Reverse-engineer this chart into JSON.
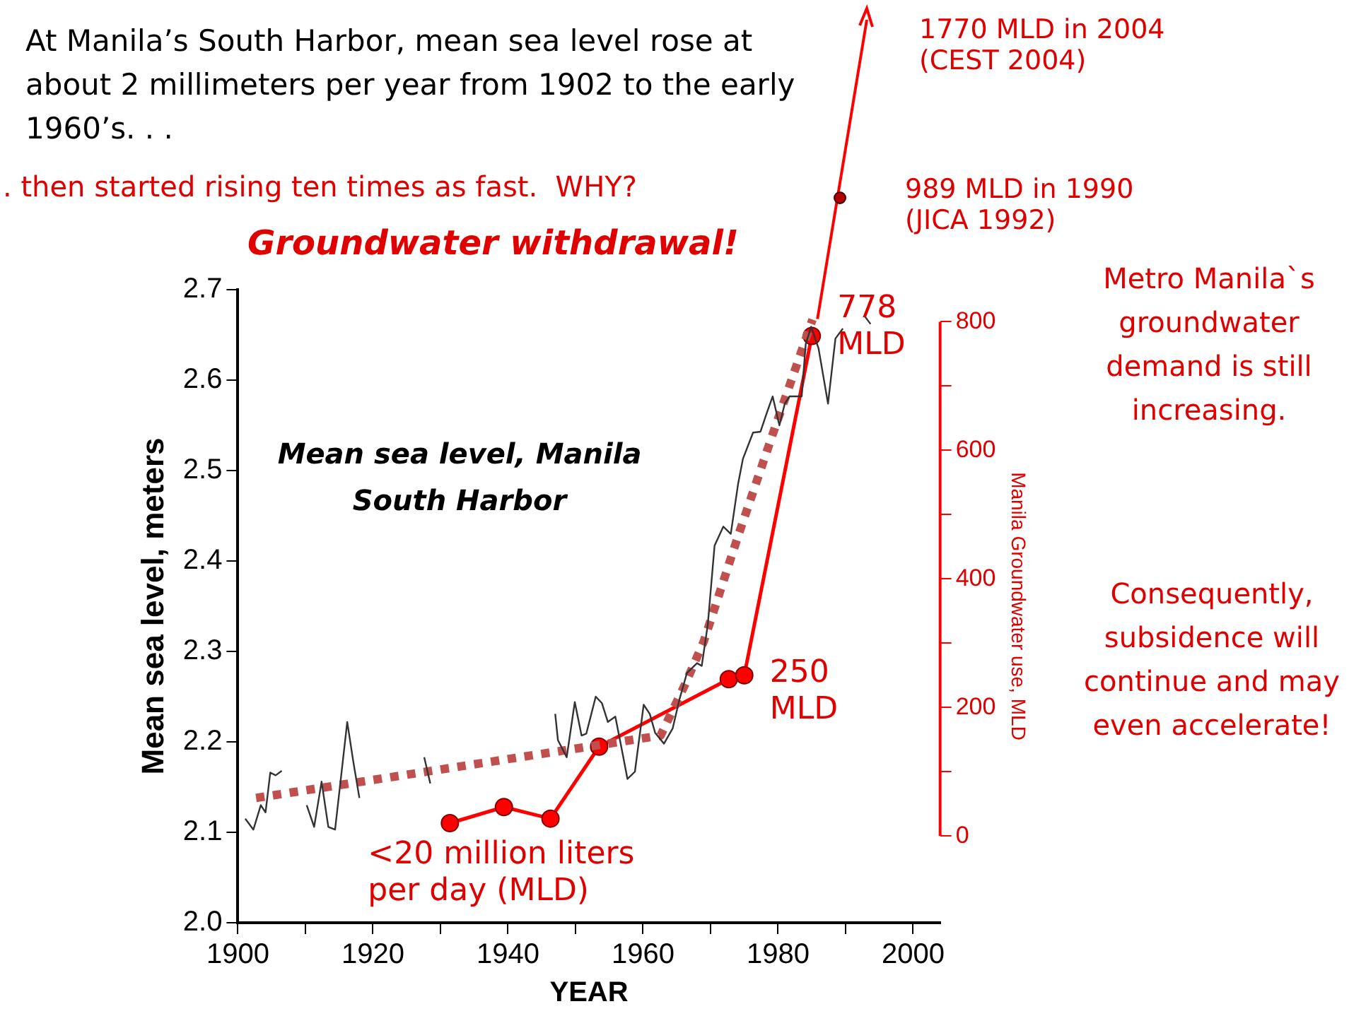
{
  "chart_data": {
    "type": "line",
    "title": "At Manila’s South Harbor, mean sea level rose at about 2 millimeters per year from 1902 to the early 1960’s. . .",
    "subtitle": ". then started rising ten times as fast.  WHY?",
    "xlabel": "YEAR",
    "ylabel": "Mean sea level, meters",
    "y2label": "Manila Groundwater use, MLD",
    "xlim": [
      1900,
      2004
    ],
    "xticks": [
      1900,
      {
        "value": 1910,
        "label": null
      },
      1920,
      {
        "value": 1930,
        "label": null
      },
      1940,
      {
        "value": 1950,
        "label": null
      },
      1960,
      {
        "value": 1970,
        "label": null
      },
      1980,
      {
        "value": 1990,
        "label": null
      },
      2000
    ],
    "ylim": [
      2.0,
      2.7
    ],
    "yticks": [
      {
        "value": 2.0,
        "label": "2.0"
      },
      2.1,
      2.2,
      2.3,
      2.4,
      2.5,
      2.6,
      {
        "value": 2.7,
        "label": "2.7"
      }
    ],
    "y2lim": [
      -135,
      850
    ],
    "y2ticks": [
      0,
      {
        "value": 100,
        "label": null
      },
      200,
      {
        "value": 300,
        "label": null
      },
      400,
      {
        "value": 500,
        "label": null
      },
      600,
      {
        "value": 700,
        "label": null
      },
      800
    ],
    "grid": false,
    "legend": false,
    "series": [
      {
        "name": "Mean sea level, Manila South Harbor",
        "color": "#333333",
        "marker": "none",
        "line_style": "solid",
        "x": [
          1901.1,
          1902.3,
          1903.4,
          1904.1,
          1904.8,
          1905.6,
          1906.5,
          1908,
          1910.2,
          1911.3,
          1912.4,
          1913.4,
          1914.4,
          1916.2,
          1917.1,
          1918.0,
          1922,
          1927.6,
          1928.5,
          1938,
          1947.0,
          1947.4,
          1948.7,
          1949.9,
          1950.9,
          1951.6,
          1953.0,
          1953.9,
          1954.8,
          1955.9,
          1956.8,
          1957.7,
          1958.8,
          1960.1,
          1961.0,
          1961.8,
          1963.1,
          1964.4,
          1965.4,
          1966.5,
          1968.0,
          1968.7,
          1969.6,
          1970.6,
          1971.9,
          1973.0,
          1974.1,
          1974.8,
          1976.3,
          1977.4,
          1978.3,
          1979.2,
          1980.2,
          1981.0,
          1981.7,
          1983.5,
          1984.1,
          1984.9,
          1986.0,
          1987.4,
          1988.5,
          1989.6,
          1991,
          1992.9,
          1993.7
        ],
        "values": [
          2.115,
          2.103,
          2.13,
          2.122,
          2.166,
          2.163,
          2.168,
          null,
          2.13,
          2.106,
          2.156,
          2.106,
          2.103,
          2.222,
          2.178,
          2.138,
          null,
          2.183,
          2.154,
          null,
          2.231,
          2.202,
          2.183,
          2.244,
          2.207,
          2.209,
          2.25,
          2.243,
          2.222,
          2.228,
          2.194,
          2.159,
          2.167,
          2.241,
          2.231,
          2.21,
          2.198,
          2.215,
          2.247,
          2.276,
          2.287,
          2.284,
          2.33,
          2.417,
          2.438,
          2.43,
          2.486,
          2.513,
          2.542,
          2.543,
          2.563,
          2.582,
          2.55,
          2.574,
          2.582,
          2.582,
          2.64,
          2.659,
          2.635,
          2.574,
          2.646,
          2.657,
          null,
          2.67,
          2.662
        ]
      },
      {
        "color": "#c0504d",
        "marker": "none",
        "line_style": "dotted",
        "x": [
          1902.7,
          1962.6,
          1966.2,
          1969.0,
          1974.1,
          1979.2,
          1985.1
        ],
        "values": [
          2.138,
          2.207,
          2.263,
          2.311,
          2.428,
          2.54,
          2.667
        ]
      },
      {
        "color": "#ff0000",
        "marker": "circle",
        "line_style": "solid",
        "axis": "y2",
        "x": [
          1931.4,
          1939.4,
          1946.3,
          1953.5,
          1972.7,
          1975,
          1985
        ],
        "values": [
          20,
          45,
          27,
          139,
          244,
          250,
          778
        ],
        "value_labels": [
          "<20 million liters per day (MLD)",
          null,
          null,
          null,
          null,
          "250 MLD",
          "778 MLD"
        ]
      }
    ],
    "annotations": [
      "Groundwater withdrawal!",
      "989 MLD in 1990 (JICA 1992)",
      "1770 MLD in 2004 (CEST 2004)",
      "Metro Manila`s groundwater demand is still increasing.",
      "Consequently, subsidence will continue and may even accelerate!"
    ]
  }
}
